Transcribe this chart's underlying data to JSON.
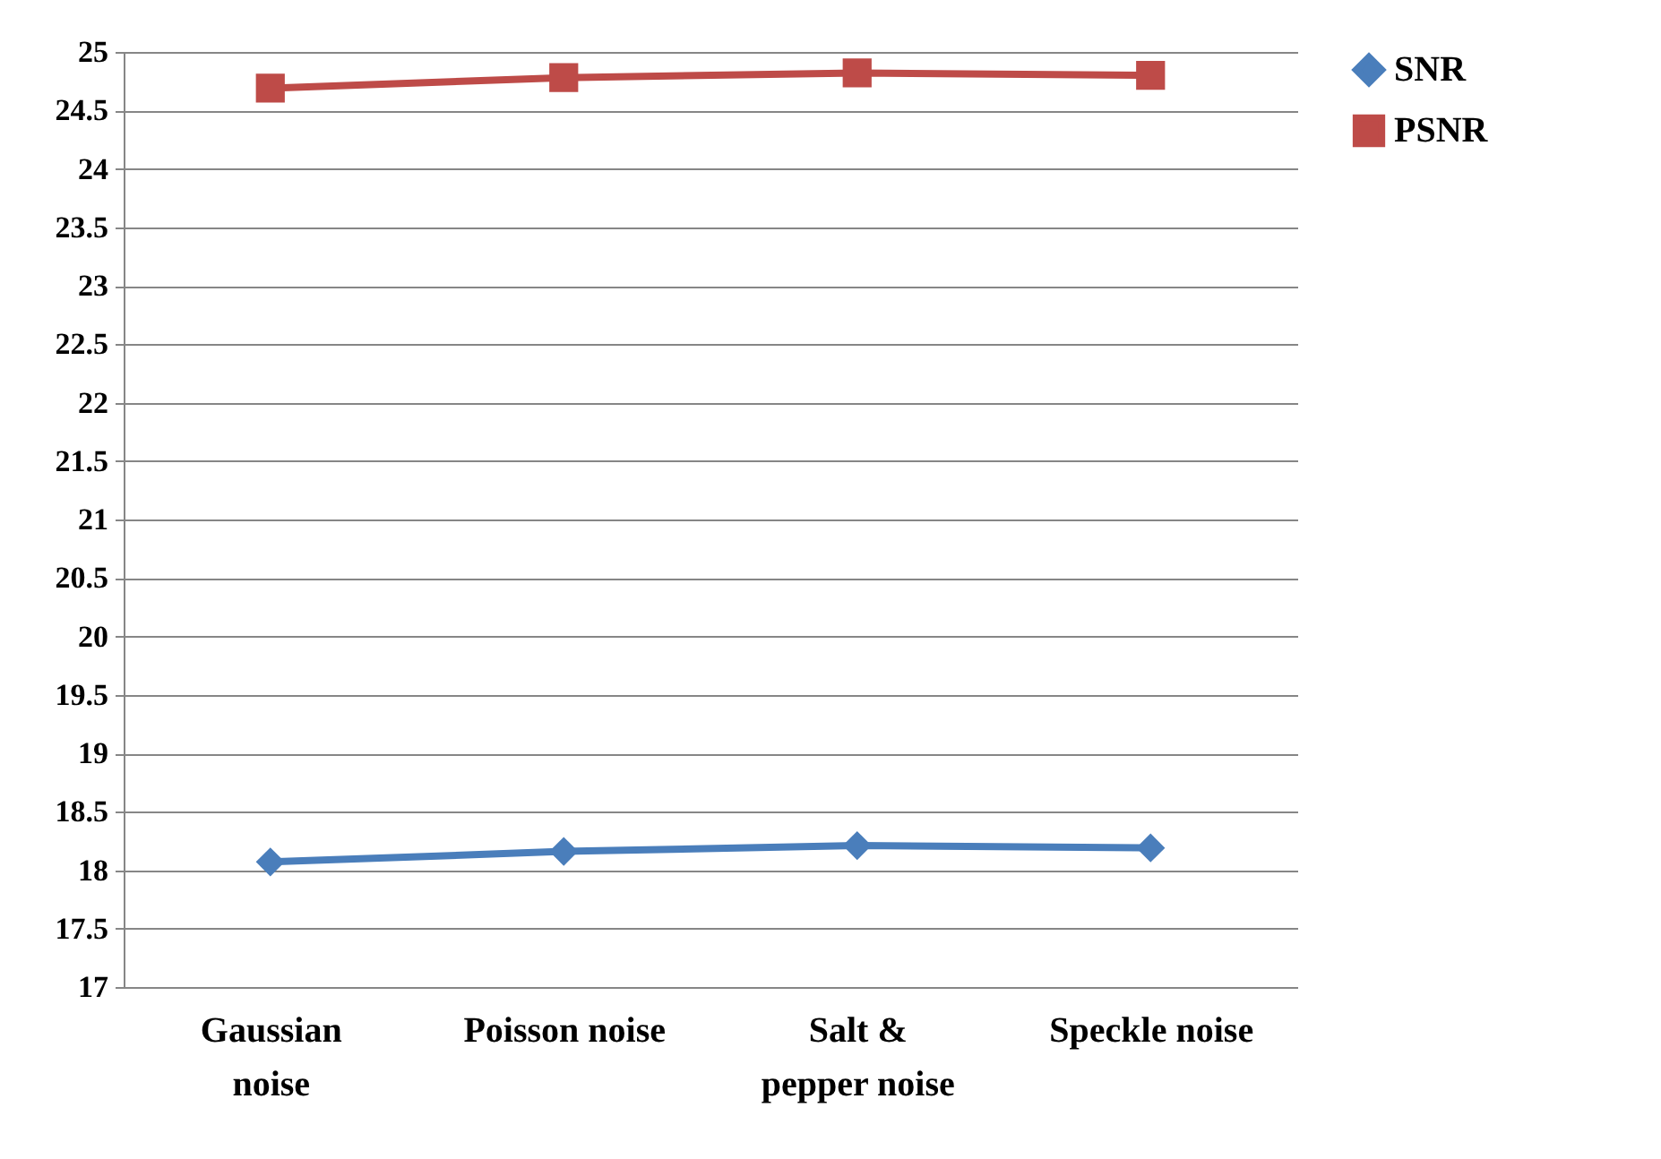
{
  "chart_data": {
    "type": "line",
    "categories": [
      "Gaussian noise",
      "Poisson noise",
      "Salt & pepper noise",
      "Speckle noise"
    ],
    "series": [
      {
        "name": "SNR",
        "color": "#4a7ebb",
        "marker": "diamond",
        "values": [
          18.07,
          18.16,
          18.21,
          18.19
        ]
      },
      {
        "name": "PSNR",
        "color": "#be4b48",
        "marker": "square",
        "values": [
          24.69,
          24.78,
          24.82,
          24.8
        ]
      }
    ],
    "ylim": [
      17,
      25
    ],
    "yticks": [
      17,
      17.5,
      18,
      18.5,
      19,
      19.5,
      20,
      20.5,
      21,
      21.5,
      22,
      22.5,
      23,
      23.5,
      24,
      24.5,
      25
    ],
    "grid": "y",
    "legend": "right",
    "line_style": "solid"
  }
}
